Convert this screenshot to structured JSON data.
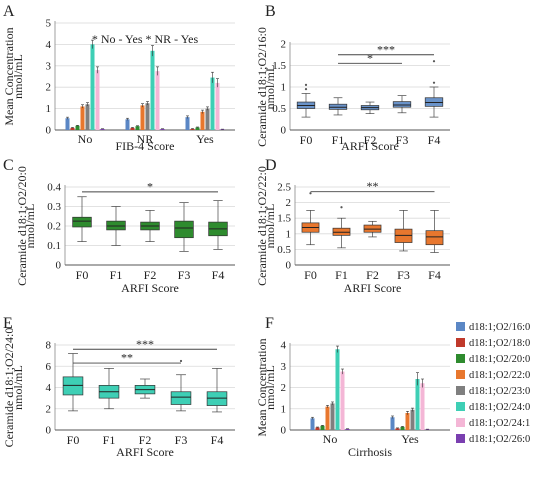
{
  "chart_data": [
    {
      "panel": "A",
      "type": "bar",
      "title": "",
      "ylabel": "Mean Concentration nmol/mL",
      "ylabel_lines": [
        "Mean Concentration",
        "nmol/mL"
      ],
      "xlabel": "FIB-4 Score",
      "categories": [
        "No",
        "NR",
        "Yes"
      ],
      "ylim": [
        0,
        5
      ],
      "yticks": [
        0,
        1,
        2,
        3,
        4,
        5
      ],
      "legend": [
        "* No - Yes",
        "* NR - Yes"
      ],
      "series": [
        {
          "name": "d18:1;O2/16:0",
          "color": "#5b87c5",
          "values": [
            0.55,
            0.5,
            0.6
          ],
          "errors": [
            0.05,
            0.05,
            0.06
          ]
        },
        {
          "name": "d18:1;O2/18:0",
          "color": "#c0392b",
          "values": [
            0.1,
            0.1,
            0.05
          ],
          "errors": [
            0.02,
            0.02,
            0.02
          ]
        },
        {
          "name": "d18:1;O2/20:0",
          "color": "#2e8b2e",
          "values": [
            0.2,
            0.18,
            0.12
          ],
          "errors": [
            0.02,
            0.02,
            0.02
          ]
        },
        {
          "name": "d18:1;O2/22:0",
          "color": "#e8772e",
          "values": [
            1.1,
            1.15,
            0.85
          ],
          "errors": [
            0.08,
            0.08,
            0.08
          ]
        },
        {
          "name": "d18:1;O2/23:0",
          "color": "#7f7f7f",
          "values": [
            1.2,
            1.25,
            1.0
          ],
          "errors": [
            0.08,
            0.08,
            0.08
          ]
        },
        {
          "name": "d18:1;O2/24:0",
          "color": "#3ecfb5",
          "values": [
            4.0,
            3.7,
            2.45
          ],
          "errors": [
            0.2,
            0.25,
            0.25
          ]
        },
        {
          "name": "d18:1;O2/24:1",
          "color": "#f4b6d6",
          "values": [
            2.8,
            2.75,
            2.2
          ],
          "errors": [
            0.15,
            0.2,
            0.2
          ]
        },
        {
          "name": "d18:1;O2/26:0",
          "color": "#7a3fb0",
          "values": [
            0.05,
            0.05,
            0.03
          ],
          "errors": [
            0.01,
            0.01,
            0.01
          ]
        }
      ]
    },
    {
      "panel": "B",
      "type": "box",
      "ylabel": "Ceramide d18:1;O2/16:0 nmol/mL",
      "ylabel_lines": [
        "Ceramide d18:1;O2/16:0",
        "nmol/mL"
      ],
      "xlabel": "ARFI Score",
      "categories": [
        "F0",
        "F1",
        "F2",
        "F3",
        "F4"
      ],
      "ylim": [
        0,
        2
      ],
      "yticks": [
        "0",
        "0.5",
        "1",
        "1.5",
        "2"
      ],
      "color": "#6a93c9",
      "boxes": [
        {
          "min": 0.3,
          "q1": 0.5,
          "median": 0.57,
          "q3": 0.65,
          "max": 0.85,
          "outliers": [
            0.95,
            1.05
          ]
        },
        {
          "min": 0.35,
          "q1": 0.48,
          "median": 0.53,
          "q3": 0.6,
          "max": 0.75,
          "outliers": []
        },
        {
          "min": 0.38,
          "q1": 0.47,
          "median": 0.52,
          "q3": 0.57,
          "max": 0.65,
          "outliers": []
        },
        {
          "min": 0.4,
          "q1": 0.53,
          "median": 0.58,
          "q3": 0.66,
          "max": 0.8,
          "outliers": []
        },
        {
          "min": 0.3,
          "q1": 0.55,
          "median": 0.64,
          "q3": 0.75,
          "max": 1.0,
          "outliers": [
            1.1,
            1.6
          ]
        }
      ],
      "brackets": [
        {
          "from": 1,
          "to": 4,
          "y": 1.75,
          "label": "***"
        },
        {
          "from": 1,
          "to": 3,
          "y": 1.55,
          "label": "*"
        }
      ]
    },
    {
      "panel": "C",
      "type": "box",
      "ylabel": "Ceramide d18:1;O2/20:0 nmol/mL",
      "ylabel_lines": [
        "Ceramide d18:1;O2/20:0",
        "nmol/mL"
      ],
      "xlabel": "ARFI Score",
      "categories": [
        "F0",
        "F1",
        "F2",
        "F3",
        "F4"
      ],
      "ylim": [
        0,
        0.4
      ],
      "yticks": [
        "0",
        "0.1",
        "0.2",
        "0.3",
        "0.4"
      ],
      "color": "#2e8b2e",
      "boxes": [
        {
          "min": 0.12,
          "q1": 0.195,
          "median": 0.225,
          "q3": 0.245,
          "max": 0.35,
          "outliers": []
        },
        {
          "min": 0.1,
          "q1": 0.18,
          "median": 0.2,
          "q3": 0.225,
          "max": 0.3,
          "outliers": []
        },
        {
          "min": 0.12,
          "q1": 0.18,
          "median": 0.2,
          "q3": 0.22,
          "max": 0.28,
          "outliers": []
        },
        {
          "min": 0.07,
          "q1": 0.14,
          "median": 0.19,
          "q3": 0.225,
          "max": 0.32,
          "outliers": []
        },
        {
          "min": 0.08,
          "q1": 0.15,
          "median": 0.185,
          "q3": 0.22,
          "max": 0.33,
          "outliers": []
        }
      ],
      "brackets": [
        {
          "from": 0,
          "to": 4,
          "y": 0.375,
          "label": "*"
        }
      ]
    },
    {
      "panel": "D",
      "type": "box",
      "ylabel": "Ceramide d18:1;O2/22:0 nmol/mL",
      "ylabel_lines": [
        "Ceramide d18:1;O2/22:0",
        "nmol/mL"
      ],
      "xlabel": "ARFI Score",
      "categories": [
        "F0",
        "F1",
        "F2",
        "F3",
        "F4"
      ],
      "ylim": [
        0,
        2.5
      ],
      "yticks": [
        "0",
        "0.5",
        "1",
        "1.5",
        "2",
        "2.5"
      ],
      "color": "#e8772e",
      "boxes": [
        {
          "min": 0.65,
          "q1": 1.05,
          "median": 1.2,
          "q3": 1.35,
          "max": 1.75,
          "outliers": [
            2.3
          ]
        },
        {
          "min": 0.55,
          "q1": 0.95,
          "median": 1.05,
          "q3": 1.18,
          "max": 1.5,
          "outliers": [
            1.85
          ]
        },
        {
          "min": 0.9,
          "q1": 1.05,
          "median": 1.15,
          "q3": 1.28,
          "max": 1.4,
          "outliers": []
        },
        {
          "min": 0.45,
          "q1": 0.72,
          "median": 0.95,
          "q3": 1.15,
          "max": 1.75,
          "outliers": []
        },
        {
          "min": 0.4,
          "q1": 0.65,
          "median": 0.9,
          "q3": 1.1,
          "max": 1.75,
          "outliers": []
        }
      ],
      "brackets": [
        {
          "from": 0,
          "to": 4,
          "y": 2.35,
          "label": "**"
        }
      ]
    },
    {
      "panel": "E",
      "type": "box",
      "ylabel": "Ceramide d18:1;O2/24:0 nmol/mL",
      "ylabel_lines": [
        "Ceramide d18:1;O2/24:0",
        "nmol/mL"
      ],
      "xlabel": "ARFI Score",
      "categories": [
        "F0",
        "F1",
        "F2",
        "F3",
        "F4"
      ],
      "ylim": [
        0,
        8
      ],
      "yticks": [
        "0",
        "2",
        "4",
        "6",
        "8"
      ],
      "color": "#3ecfb5",
      "boxes": [
        {
          "min": 1.8,
          "q1": 3.3,
          "median": 4.2,
          "q3": 5.0,
          "max": 7.2,
          "outliers": []
        },
        {
          "min": 2.0,
          "q1": 3.0,
          "median": 3.6,
          "q3": 4.2,
          "max": 5.8,
          "outliers": []
        },
        {
          "min": 3.0,
          "q1": 3.4,
          "median": 3.8,
          "q3": 4.2,
          "max": 4.8,
          "outliers": []
        },
        {
          "min": 1.8,
          "q1": 2.4,
          "median": 3.1,
          "q3": 3.6,
          "max": 5.2,
          "outliers": [
            6.5
          ]
        },
        {
          "min": 1.7,
          "q1": 2.3,
          "median": 3.0,
          "q3": 3.6,
          "max": 5.8,
          "outliers": []
        }
      ],
      "brackets": [
        {
          "from": 0,
          "to": 4,
          "y": 7.6,
          "label": "***"
        },
        {
          "from": 0,
          "to": 3,
          "y": 6.3,
          "label": "**"
        }
      ]
    },
    {
      "panel": "F",
      "type": "bar",
      "ylabel": "Mean Concentration nmol/mL",
      "ylabel_lines": [
        "Mean Concentration",
        "nmol/mL"
      ],
      "xlabel": "Cirrhosis",
      "categories": [
        "No",
        "Yes"
      ],
      "ylim": [
        0,
        4
      ],
      "yticks": [
        0,
        1,
        2,
        3,
        4
      ],
      "legend_position": "right",
      "series": [
        {
          "name": "d18:1;O2/16:0",
          "color": "#5b87c5",
          "values": [
            0.55,
            0.6
          ],
          "errors": [
            0.05,
            0.06
          ]
        },
        {
          "name": "d18:1;O2/18:0",
          "color": "#c0392b",
          "values": [
            0.12,
            0.08
          ],
          "errors": [
            0.02,
            0.02
          ]
        },
        {
          "name": "d18:1;O2/20:0",
          "color": "#2e8b2e",
          "values": [
            0.2,
            0.15
          ],
          "errors": [
            0.02,
            0.02
          ]
        },
        {
          "name": "d18:1;O2/22:0",
          "color": "#e8772e",
          "values": [
            1.1,
            0.8
          ],
          "errors": [
            0.06,
            0.08
          ]
        },
        {
          "name": "d18:1;O2/23:0",
          "color": "#7f7f7f",
          "values": [
            1.25,
            0.95
          ],
          "errors": [
            0.07,
            0.08
          ]
        },
        {
          "name": "d18:1;O2/24:0",
          "color": "#3ecfb5",
          "values": [
            3.8,
            2.4
          ],
          "errors": [
            0.15,
            0.3
          ]
        },
        {
          "name": "d18:1;O2/24:1",
          "color": "#f4b6d6",
          "values": [
            2.75,
            2.2
          ],
          "errors": [
            0.12,
            0.2
          ]
        },
        {
          "name": "d18:1;O2/26:0",
          "color": "#7a3fb0",
          "values": [
            0.05,
            0.03
          ],
          "errors": [
            0.01,
            0.01
          ]
        }
      ]
    }
  ]
}
